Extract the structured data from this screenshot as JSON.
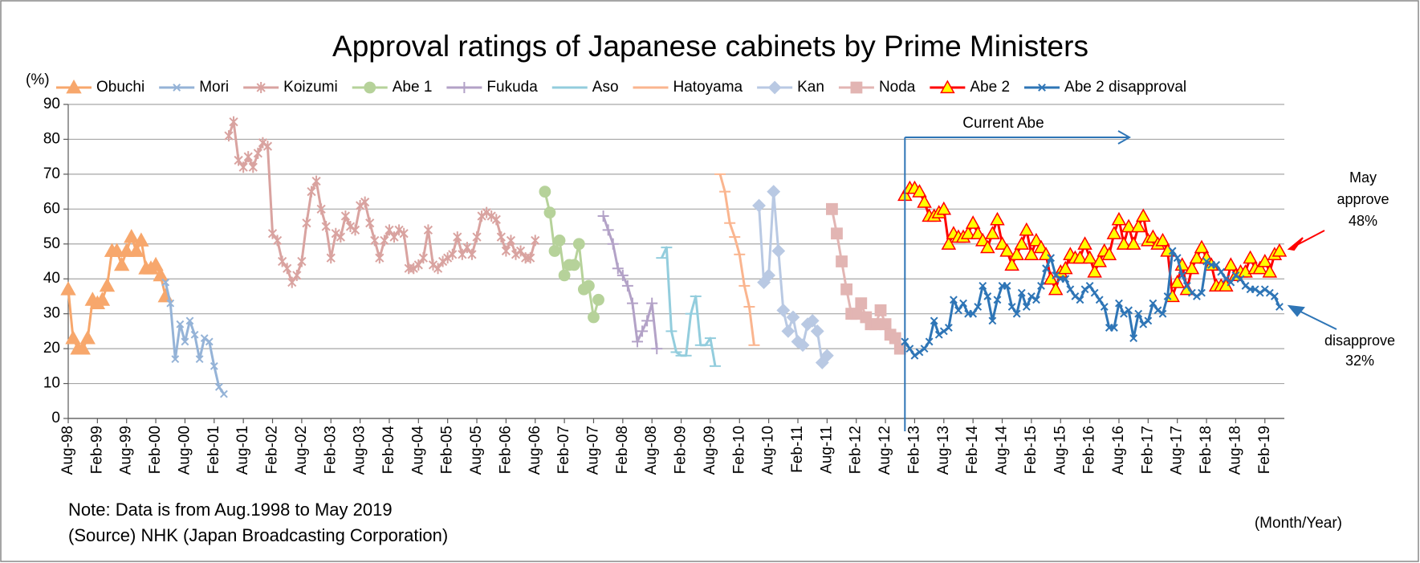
{
  "chart_data": {
    "type": "line",
    "title": "Approval ratings of Japanese cabinets by Prime Ministers",
    "y_label": "(%)",
    "x_label": "(Month/Year)",
    "notes": [
      "Note: Data is from Aug.1998 to  May 2019",
      "(Source) NHK (Japan Broadcasting Corporation)"
    ],
    "annotations": {
      "current": "Current Abe",
      "approve": [
        "May",
        "approve",
        "48%"
      ],
      "disapprove": [
        "disapprove",
        "32%"
      ]
    },
    "ylim": [
      0,
      90
    ],
    "yticks": [
      0,
      10,
      20,
      30,
      40,
      50,
      60,
      70,
      80,
      90
    ],
    "xlim": [
      "Aug-98",
      "Jun-19"
    ],
    "xticks": [
      "Aug-98",
      "Feb-99",
      "Aug-99",
      "Feb-00",
      "Aug-00",
      "Feb-01",
      "Aug-01",
      "Feb-02",
      "Aug-02",
      "Feb-03",
      "Aug-03",
      "Feb-04",
      "Aug-04",
      "Feb-05",
      "Aug-05",
      "Feb-06",
      "Aug-06",
      "Feb-07",
      "Aug-07",
      "Feb-08",
      "Aug-08",
      "Feb-09",
      "Aug-09",
      "Feb-10",
      "Aug-10",
      "Feb-11",
      "Aug-11",
      "Feb-12",
      "Aug-12",
      "Feb-13",
      "Aug-13",
      "Feb-14",
      "Aug-14",
      "Feb-15",
      "Aug-15",
      "Feb-16",
      "Aug-16",
      "Feb-17",
      "Aug-17",
      "Feb-18",
      "Aug-18",
      "Feb-19"
    ],
    "grid": true,
    "legend": "top",
    "series": [
      {
        "name": "Obuchi",
        "color": "#f7a76c",
        "marker": "triangle",
        "marker_fill": "#f7a76c",
        "x": [
          "Aug-98",
          "Sep-98",
          "Oct-98",
          "Nov-98",
          "Dec-98",
          "Jan-99",
          "Feb-99",
          "Mar-99",
          "Apr-99",
          "May-99",
          "Jun-99",
          "Jul-99",
          "Aug-99",
          "Sep-99",
          "Oct-99",
          "Nov-99",
          "Dec-99",
          "Jan-00",
          "Feb-00",
          "Mar-00",
          "Apr-00"
        ],
        "values": [
          37,
          23,
          20,
          20,
          23,
          34,
          33,
          34,
          38,
          48,
          48,
          44,
          48,
          52,
          48,
          51,
          43,
          43,
          44,
          41,
          35
        ]
      },
      {
        "name": "Mori",
        "color": "#95b3d7",
        "marker": "x",
        "marker_fill": "none",
        "x": [
          "Apr-00",
          "May-00",
          "Jun-00",
          "Jul-00",
          "Aug-00",
          "Sep-00",
          "Oct-00",
          "Nov-00",
          "Dec-00",
          "Jan-01",
          "Feb-01",
          "Mar-01",
          "Apr-01"
        ],
        "values": [
          39,
          33,
          17,
          27,
          22,
          28,
          24,
          17,
          23,
          22,
          15,
          9,
          7
        ]
      },
      {
        "name": "Koizumi",
        "color": "#d9a3a0",
        "marker": "asterisk",
        "marker_fill": "none",
        "x": [
          "May-01",
          "Jun-01",
          "Jul-01",
          "Aug-01",
          "Sep-01",
          "Oct-01",
          "Nov-01",
          "Dec-01",
          "Jan-02",
          "Feb-02",
          "Mar-02",
          "Apr-02",
          "May-02",
          "Jun-02",
          "Jul-02",
          "Aug-02",
          "Sep-02",
          "Oct-02",
          "Nov-02",
          "Dec-02",
          "Jan-03",
          "Feb-03",
          "Mar-03",
          "Apr-03",
          "May-03",
          "Jun-03",
          "Jul-03",
          "Aug-03",
          "Sep-03",
          "Oct-03",
          "Nov-03",
          "Dec-03",
          "Jan-04",
          "Feb-04",
          "Mar-04",
          "Apr-04",
          "May-04",
          "Jun-04",
          "Jul-04",
          "Aug-04",
          "Sep-04",
          "Oct-04",
          "Nov-04",
          "Dec-04",
          "Jan-05",
          "Feb-05",
          "Mar-05",
          "Apr-05",
          "May-05",
          "Jun-05",
          "Jul-05",
          "Aug-05",
          "Sep-05",
          "Oct-05",
          "Nov-05",
          "Dec-05",
          "Jan-06",
          "Feb-06",
          "Mar-06",
          "Apr-06",
          "May-06",
          "Jun-06",
          "Jul-06",
          "Aug-06"
        ],
        "values": [
          81,
          85,
          74,
          72,
          75,
          72,
          76,
          79,
          78,
          53,
          51,
          45,
          43,
          39,
          41,
          45,
          56,
          65,
          68,
          60,
          55,
          46,
          53,
          52,
          58,
          55,
          54,
          61,
          62,
          56,
          51,
          46,
          51,
          54,
          52,
          54,
          53,
          43,
          43,
          44,
          46,
          54,
          44,
          43,
          45,
          46,
          47,
          52,
          47,
          49,
          47,
          52,
          58,
          59,
          58,
          57,
          52,
          48,
          51,
          47,
          48,
          46,
          46,
          51
        ]
      },
      {
        "name": "Abe 1",
        "color": "#b6d29a",
        "marker": "circle",
        "marker_fill": "#b6d29a",
        "x": [
          "Oct-06",
          "Nov-06",
          "Dec-06",
          "Jan-07",
          "Feb-07",
          "Mar-07",
          "Apr-07",
          "May-07",
          "Jun-07",
          "Jul-07",
          "Aug-07",
          "Sep-07"
        ],
        "values": [
          65,
          59,
          48,
          51,
          41,
          44,
          44,
          50,
          37,
          38,
          29,
          34
        ]
      },
      {
        "name": "Fukuda",
        "color": "#b3a2c7",
        "marker": "plus",
        "marker_fill": "none",
        "x": [
          "Oct-07",
          "Nov-07",
          "Dec-07",
          "Jan-08",
          "Feb-08",
          "Mar-08",
          "Apr-08",
          "May-08",
          "Jun-08",
          "Jul-08",
          "Aug-08",
          "Sep-08"
        ],
        "values": [
          58,
          54,
          50,
          43,
          41,
          38,
          33,
          22,
          25,
          28,
          33,
          20
        ]
      },
      {
        "name": "Aso",
        "color": "#93cddd",
        "marker": "dash",
        "marker_fill": "none",
        "x": [
          "Oct-08",
          "Nov-08",
          "Dec-08",
          "Jan-09",
          "Feb-09",
          "Mar-09",
          "Apr-09",
          "May-09",
          "Jun-09",
          "Jul-09",
          "Aug-09",
          "Sep-09"
        ],
        "values": [
          46,
          49,
          25,
          19,
          18,
          18,
          30,
          35,
          21,
          21,
          23,
          15
        ]
      },
      {
        "name": "Hatoyama",
        "color": "#fab58f",
        "marker": "dash",
        "marker_fill": "none",
        "x": [
          "Oct-09",
          "Nov-09",
          "Dec-09",
          "Jan-10",
          "Feb-10",
          "Mar-10",
          "Apr-10",
          "May-10"
        ],
        "values": [
          70,
          65,
          56,
          52,
          47,
          38,
          32,
          21
        ]
      },
      {
        "name": "Kan",
        "color": "#b9c9e3",
        "marker": "diamond",
        "marker_fill": "#b9c9e3",
        "x": [
          "Jun-10",
          "Jul-10",
          "Aug-10",
          "Sep-10",
          "Oct-10",
          "Nov-10",
          "Dec-10",
          "Jan-11",
          "Feb-11",
          "Mar-11",
          "Apr-11",
          "May-11",
          "Jun-11",
          "Jul-11",
          "Aug-11"
        ],
        "values": [
          61,
          39,
          41,
          65,
          48,
          31,
          25,
          29,
          22,
          21,
          27,
          28,
          25,
          16,
          18
        ]
      },
      {
        "name": "Noda",
        "color": "#e2b5b3",
        "marker": "square",
        "marker_fill": "#e2b5b3",
        "x": [
          "Sep-11",
          "Oct-11",
          "Nov-11",
          "Dec-11",
          "Jan-12",
          "Feb-12",
          "Mar-12",
          "Apr-12",
          "May-12",
          "Jun-12",
          "Jul-12",
          "Aug-12",
          "Sep-12",
          "Oct-12",
          "Nov-12"
        ],
        "values": [
          60,
          53,
          45,
          37,
          30,
          30,
          33,
          29,
          27,
          27,
          31,
          27,
          24,
          23,
          20
        ]
      },
      {
        "name": "Abe 2",
        "color": "#ff0000",
        "marker": "triangle",
        "marker_fill": "#ffff00",
        "x": [
          "Dec-12",
          "Jan-13",
          "Feb-13",
          "Mar-13",
          "Apr-13",
          "May-13",
          "Jun-13",
          "Jul-13",
          "Aug-13",
          "Sep-13",
          "Oct-13",
          "Nov-13",
          "Dec-13",
          "Jan-14",
          "Feb-14",
          "Mar-14",
          "Apr-14",
          "May-14",
          "Jun-14",
          "Jul-14",
          "Aug-14",
          "Sep-14",
          "Oct-14",
          "Nov-14",
          "Dec-14",
          "Jan-15",
          "Feb-15",
          "Mar-15",
          "Apr-15",
          "May-15",
          "Jun-15",
          "Jul-15",
          "Aug-15",
          "Sep-15",
          "Oct-15",
          "Nov-15",
          "Dec-15",
          "Jan-16",
          "Feb-16",
          "Mar-16",
          "Apr-16",
          "May-16",
          "Jun-16",
          "Jul-16",
          "Aug-16",
          "Sep-16",
          "Oct-16",
          "Nov-16",
          "Dec-16",
          "Jan-17",
          "Feb-17",
          "Mar-17",
          "Apr-17",
          "May-17",
          "Jun-17",
          "Jul-17",
          "Aug-17",
          "Sep-17",
          "Oct-17",
          "Nov-17",
          "Dec-17",
          "Jan-18",
          "Feb-18",
          "Mar-18",
          "Apr-18",
          "May-18",
          "Jun-18",
          "Jul-18",
          "Aug-18",
          "Sep-18",
          "Oct-18",
          "Nov-18",
          "Dec-18",
          "Jan-19",
          "Feb-19",
          "Mar-19",
          "Apr-19",
          "May-19"
        ],
        "values": [
          64,
          66,
          66,
          65,
          62,
          58,
          58,
          59,
          60,
          50,
          53,
          52,
          52,
          53,
          56,
          53,
          51,
          49,
          53,
          57,
          50,
          48,
          44,
          47,
          50,
          54,
          47,
          51,
          49,
          47,
          40,
          37,
          42,
          43,
          47,
          46,
          46,
          50,
          46,
          42,
          45,
          48,
          47,
          53,
          57,
          50,
          55,
          50,
          55,
          58,
          51,
          52,
          50,
          51,
          48,
          35,
          39,
          44,
          37,
          43,
          46,
          49,
          46,
          44,
          38,
          38,
          38,
          44,
          41,
          42,
          42,
          46,
          43,
          43,
          45,
          42,
          47,
          48
        ]
      },
      {
        "name": "Abe 2 disapproval",
        "color": "#2e75b6",
        "marker": "x",
        "marker_fill": "none",
        "x": [
          "Dec-12",
          "Jan-13",
          "Feb-13",
          "Mar-13",
          "Apr-13",
          "May-13",
          "Jun-13",
          "Jul-13",
          "Aug-13",
          "Sep-13",
          "Oct-13",
          "Nov-13",
          "Dec-13",
          "Jan-14",
          "Feb-14",
          "Mar-14",
          "Apr-14",
          "May-14",
          "Jun-14",
          "Jul-14",
          "Aug-14",
          "Sep-14",
          "Oct-14",
          "Nov-14",
          "Dec-14",
          "Jan-15",
          "Feb-15",
          "Mar-15",
          "Apr-15",
          "May-15",
          "Jun-15",
          "Jul-15",
          "Aug-15",
          "Sep-15",
          "Oct-15",
          "Nov-15",
          "Dec-15",
          "Jan-16",
          "Feb-16",
          "Mar-16",
          "Apr-16",
          "May-16",
          "Jun-16",
          "Jul-16",
          "Aug-16",
          "Sep-16",
          "Oct-16",
          "Nov-16",
          "Dec-16",
          "Jan-17",
          "Feb-17",
          "Mar-17",
          "Apr-17",
          "May-17",
          "Jun-17",
          "Jul-17",
          "Aug-17",
          "Sep-17",
          "Oct-17",
          "Nov-17",
          "Dec-17",
          "Jan-18",
          "Feb-18",
          "Mar-18",
          "Apr-18",
          "May-18",
          "Jun-18",
          "Jul-18",
          "Aug-18",
          "Sep-18",
          "Oct-18",
          "Nov-18",
          "Dec-18",
          "Jan-19",
          "Feb-19",
          "Mar-19",
          "Apr-19",
          "May-19"
        ],
        "values": [
          22,
          20,
          18,
          19,
          20,
          22,
          28,
          24,
          25,
          26,
          34,
          31,
          33,
          30,
          30,
          32,
          38,
          35,
          28,
          34,
          38,
          38,
          32,
          30,
          36,
          32,
          35,
          34,
          38,
          43,
          46,
          41,
          40,
          40,
          37,
          35,
          34,
          37,
          38,
          36,
          34,
          32,
          26,
          26,
          33,
          30,
          31,
          23,
          30,
          27,
          28,
          33,
          31,
          30,
          35,
          48,
          46,
          41,
          38,
          36,
          35,
          36,
          45,
          44,
          44,
          42,
          40,
          39,
          41,
          40,
          38,
          37,
          37,
          36,
          37,
          36,
          35,
          32
        ]
      }
    ]
  }
}
